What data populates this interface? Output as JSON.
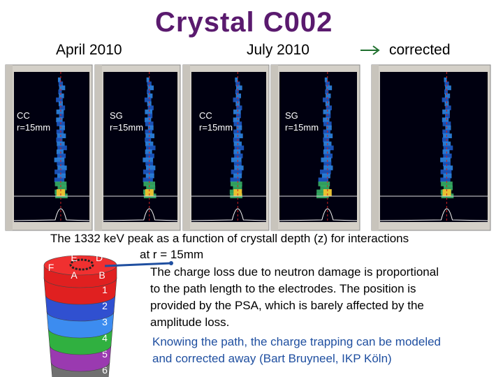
{
  "title": "Crystal C002",
  "headings": {
    "april": "April 2010",
    "july": "July 2010",
    "corrected": "corrected"
  },
  "panels": [
    {
      "label": [
        "CC",
        "r=15mm"
      ]
    },
    {
      "label": [
        "SG",
        "r=15mm"
      ]
    },
    {
      "label": [
        "CC",
        "r=15mm"
      ]
    },
    {
      "label": [
        "SG",
        "r=15mm"
      ]
    }
  ],
  "caption": [
    "The 1332 keV peak as a function of crystall depth (z) for  interactions",
    "at r = 15mm"
  ],
  "paragraph1": [
    "The charge loss due to neutron damage is proportional",
    "to the path length to the electrodes. The position is",
    "provided by the PSA, which is barely affected by the",
    "amplitude loss."
  ],
  "paragraph2": [
    "Knowing the path, the charge trapping can be modeled",
    "and corrected away (Bart Bruyneel, IKP Köln)"
  ],
  "crystal": {
    "top": [
      "F",
      "E",
      "D",
      "C",
      "A",
      "B"
    ],
    "layers": [
      "6",
      "5",
      "4",
      "3",
      "2",
      "1"
    ]
  }
}
